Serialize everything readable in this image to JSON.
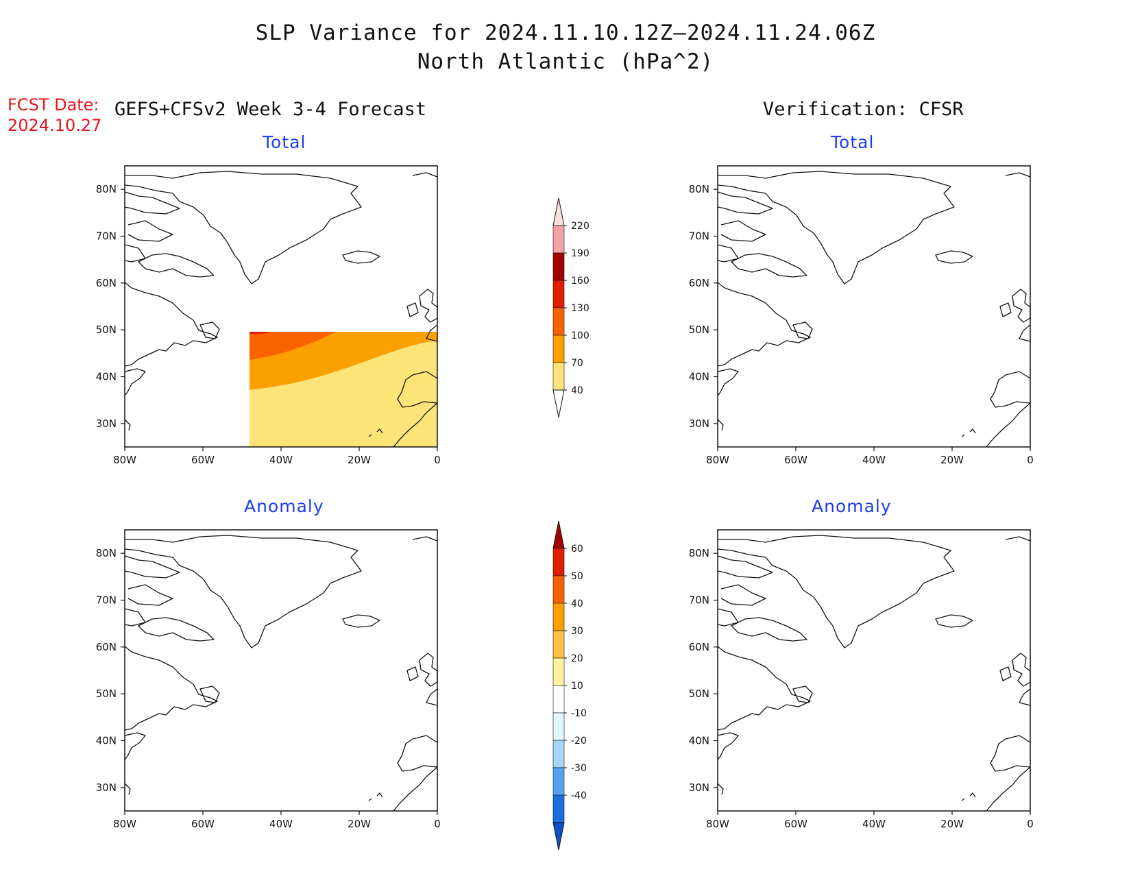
{
  "title": {
    "line1": "SLP Variance for 2024.11.10.12Z–2024.11.24.06Z",
    "line2": "North Atlantic (hPa^2)"
  },
  "fcst": {
    "label": "FCST Date:",
    "date": "2024.10.27"
  },
  "columns": {
    "left": "GEFS+CFSv2 Week 3-4 Forecast",
    "right": "Verification: CFSR"
  },
  "panels": {
    "total_left": "Total",
    "total_right": "Total",
    "anom_left": "Anomaly",
    "anom_right": "Anomaly"
  },
  "axes": {
    "lat_labels": [
      "80N",
      "70N",
      "60N",
      "50N",
      "40N",
      "30N"
    ],
    "lon_labels": [
      "80W",
      "60W",
      "40W",
      "20W",
      "0"
    ]
  },
  "colorbar_total": {
    "levels": [
      "220",
      "190",
      "160",
      "130",
      "100",
      "70",
      "40"
    ],
    "colors": [
      "#fbe0e0",
      "#f2a3a3",
      "#a30000",
      "#e01e00",
      "#f96400",
      "#fca000",
      "#fde479",
      "#ffffff"
    ]
  },
  "colorbar_anomaly": {
    "levels": [
      "60",
      "50",
      "40",
      "30",
      "20",
      "10",
      "-10",
      "-20",
      "-30",
      "-40"
    ],
    "colors_top": [
      "#a30000",
      "#e01e00",
      "#f96400",
      "#fca000",
      "#fdc040",
      "#fef4a0"
    ],
    "color_mid": "#ffffff",
    "colors_bottom": [
      "#e0f7fd",
      "#a6d6f8",
      "#55a3ee",
      "#1d6fe0",
      "#0f4fc8"
    ]
  }
}
